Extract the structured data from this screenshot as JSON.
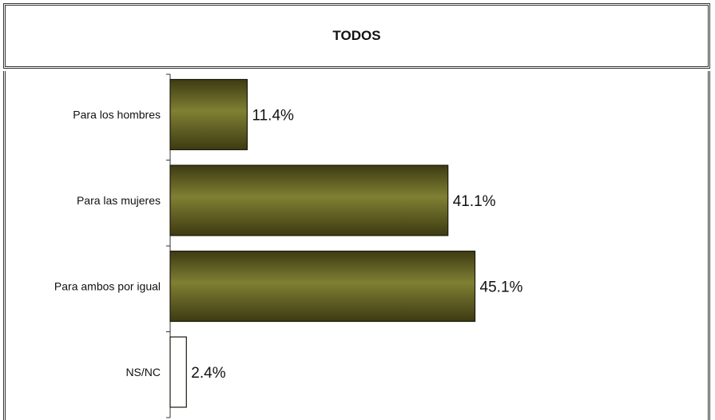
{
  "chart_data": {
    "type": "bar",
    "orientation": "horizontal",
    "title": "TODOS",
    "categories": [
      "Para los hombres",
      "Para las mujeres",
      "Para ambos por igual",
      "NS/NC"
    ],
    "values": [
      11.4,
      41.1,
      45.1,
      2.4
    ],
    "value_labels": [
      "11.4%",
      "41.1%",
      "45.1%",
      "2.4%"
    ],
    "unit": "%",
    "xlim": [
      0,
      100
    ],
    "grid": false,
    "legend": "none",
    "colors": {
      "bar_fill_dark": "#3d3a12",
      "bar_fill_light": "#808033",
      "last_bar_fill": "#ffffff",
      "bar_stroke": "#1a1a0a"
    }
  }
}
